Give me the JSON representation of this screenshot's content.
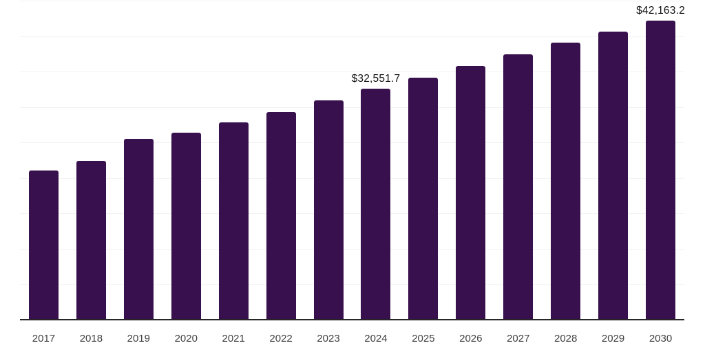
{
  "chart_data": {
    "type": "bar",
    "categories": [
      "2017",
      "2018",
      "2019",
      "2020",
      "2021",
      "2022",
      "2023",
      "2024",
      "2025",
      "2026",
      "2027",
      "2028",
      "2029",
      "2030"
    ],
    "values": [
      21060,
      22420,
      25520,
      26400,
      27850,
      29300,
      30950,
      32551.7,
      34150,
      35800,
      37440,
      39090,
      40640,
      42163.2
    ],
    "data_labels": [
      {
        "category": "2024",
        "text": "$32,551.7"
      },
      {
        "category": "2030",
        "text": "$42,163.2"
      }
    ],
    "title": "",
    "xlabel": "",
    "ylabel": "",
    "ylim": [
      0,
      45000
    ],
    "gridline_step": 5000,
    "grid": "horizontal",
    "y_axis_labels_visible": false,
    "legend_position": "none",
    "colors": {
      "bar": "#38104E",
      "gridline": "#F2F2F2",
      "axis_line": "#262626",
      "tick_label": "#3F3F3F",
      "data_label": "#111111",
      "background": "#FFFFFF"
    }
  }
}
